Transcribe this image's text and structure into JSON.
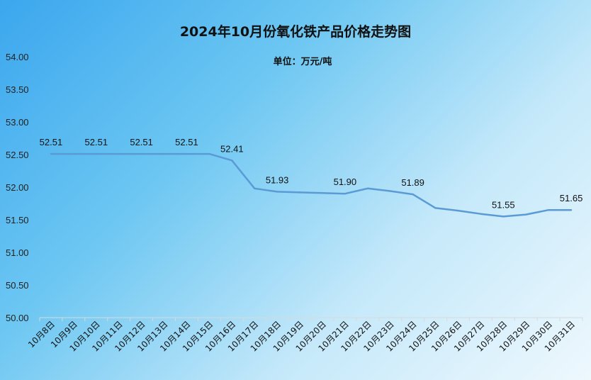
{
  "chart_data": {
    "type": "line",
    "title": "2024年10月份氧化铁产品价格走势图",
    "subtitle": "单位：万元/吨",
    "xlabel": "",
    "ylabel": "",
    "ylim": [
      50.0,
      54.0
    ],
    "y_ticks": [
      "50.00",
      "50.50",
      "51.00",
      "51.50",
      "52.00",
      "52.50",
      "53.00",
      "53.50",
      "54.00"
    ],
    "grid": false,
    "legend": "none",
    "line_color": "#5b9bd5",
    "categories": [
      "10月8日",
      "10月9日",
      "10月10日",
      "10月11日",
      "10月12日",
      "10月13日",
      "10月14日",
      "10月15日",
      "10月16日",
      "10月17日",
      "10月18日",
      "10月19日",
      "10月20日",
      "10月21日",
      "10月22日",
      "10月23日",
      "10月24日",
      "10月25日",
      "10月26日",
      "10月27日",
      "10月28日",
      "10月29日",
      "10月30日",
      "10月31日"
    ],
    "series": [
      {
        "values": [
          52.51,
          52.51,
          52.51,
          52.51,
          52.51,
          52.51,
          52.51,
          52.51,
          52.41,
          51.98,
          51.93,
          51.92,
          51.91,
          51.9,
          51.98,
          51.94,
          51.89,
          51.68,
          51.64,
          51.59,
          51.55,
          51.58,
          51.65,
          51.65
        ],
        "data_labels": [
          {
            "index": 0,
            "text": "52.51"
          },
          {
            "index": 2,
            "text": "52.51"
          },
          {
            "index": 4,
            "text": "52.51"
          },
          {
            "index": 6,
            "text": "52.51"
          },
          {
            "index": 8,
            "text": "52.41"
          },
          {
            "index": 10,
            "text": "51.93"
          },
          {
            "index": 13,
            "text": "51.90"
          },
          {
            "index": 16,
            "text": "51.89"
          },
          {
            "index": 20,
            "text": "51.55"
          },
          {
            "index": 23,
            "text": "51.65"
          }
        ]
      }
    ]
  }
}
